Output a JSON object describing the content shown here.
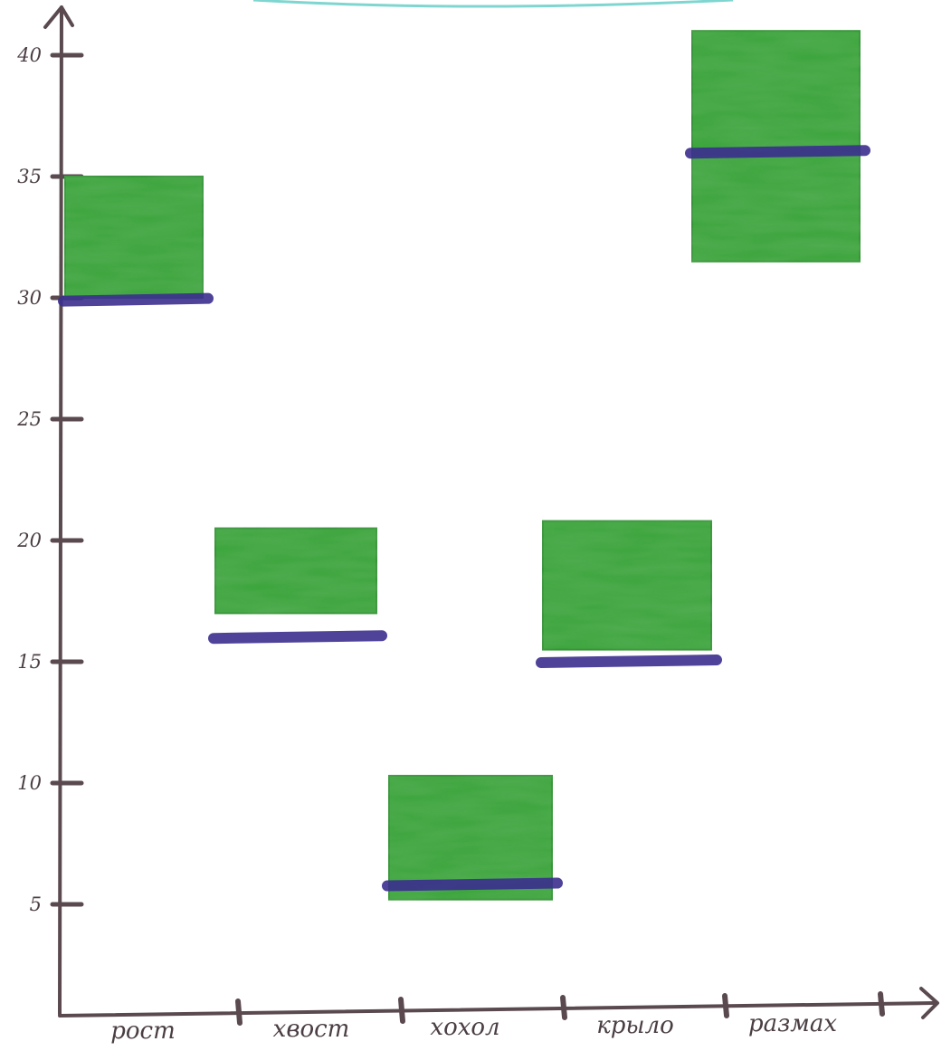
{
  "chart_data": {
    "type": "bar",
    "title": "",
    "xlabel": "",
    "ylabel": "",
    "ylim": [
      0,
      42
    ],
    "yticks": [
      5,
      10,
      15,
      20,
      25,
      30,
      35,
      40
    ],
    "grid": false,
    "categories": [
      "рост",
      "хвост",
      "хохол",
      "крыло",
      "размах"
    ],
    "ranges": [
      {
        "low": 30,
        "high": 35
      },
      {
        "low": 17,
        "high": 20.5
      },
      {
        "low": 5.2,
        "high": 10.3
      },
      {
        "low": 15.5,
        "high": 20.8
      },
      {
        "low": 31.5,
        "high": 41
      }
    ],
    "markers": [
      29.9,
      16,
      5.8,
      15,
      36
    ],
    "colors": {
      "box": "#3aa53a",
      "box_dark": "#2f8f30",
      "marker": "#3b2f8f",
      "axis": "#5a4a50"
    }
  }
}
